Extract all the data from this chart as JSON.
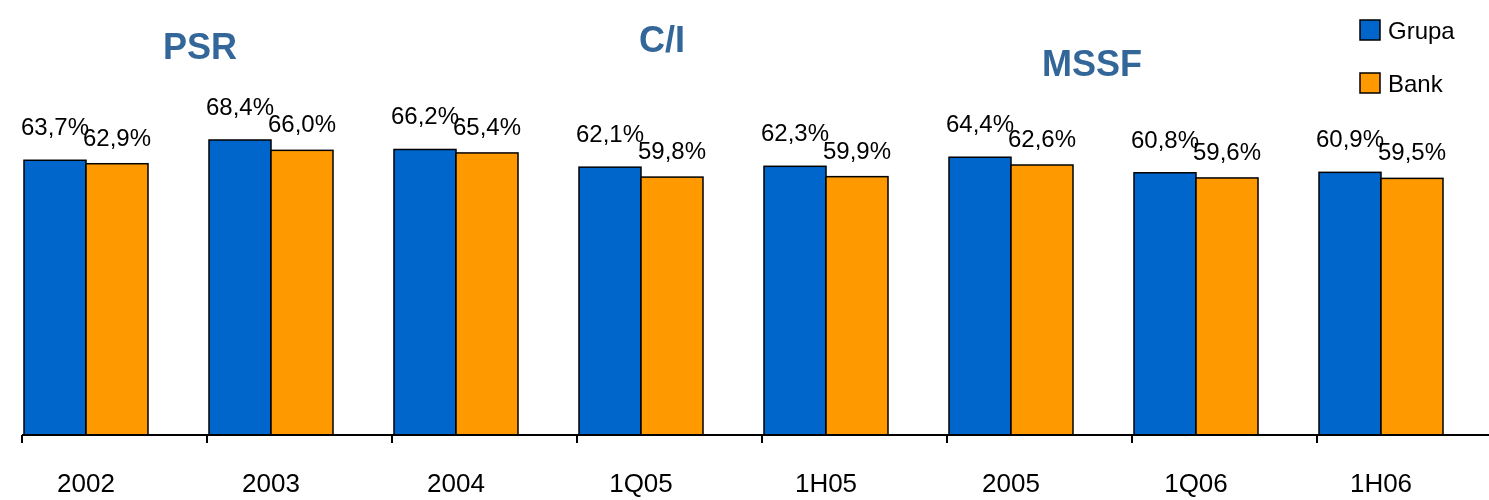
{
  "chart_data": {
    "type": "bar",
    "categories": [
      "2002",
      "2003",
      "2004",
      "1Q05",
      "1H05",
      "2005",
      "1Q06",
      "1H06"
    ],
    "series": [
      {
        "name": "Grupa",
        "color": "#0066cc",
        "values": [
          63.7,
          68.4,
          66.2,
          62.1,
          62.3,
          64.4,
          60.8,
          60.9
        ],
        "value_labels": [
          "63,7%",
          "68,4%",
          "66,2%",
          "62,1%",
          "62,3%",
          "64,4%",
          "60,8%",
          "60,9%"
        ]
      },
      {
        "name": "Bank",
        "color": "#ff9900",
        "values": [
          62.9,
          66.0,
          65.4,
          59.8,
          59.9,
          62.6,
          59.6,
          59.5
        ],
        "value_labels": [
          "62,9%",
          "66,0%",
          "65,4%",
          "59,8%",
          "59,9%",
          "62,6%",
          "59,6%",
          "59,5%"
        ]
      }
    ],
    "tick_labels": "x",
    "legend": "top right",
    "annotations": [
      "PSR",
      "C/I",
      "MSSF"
    ]
  }
}
